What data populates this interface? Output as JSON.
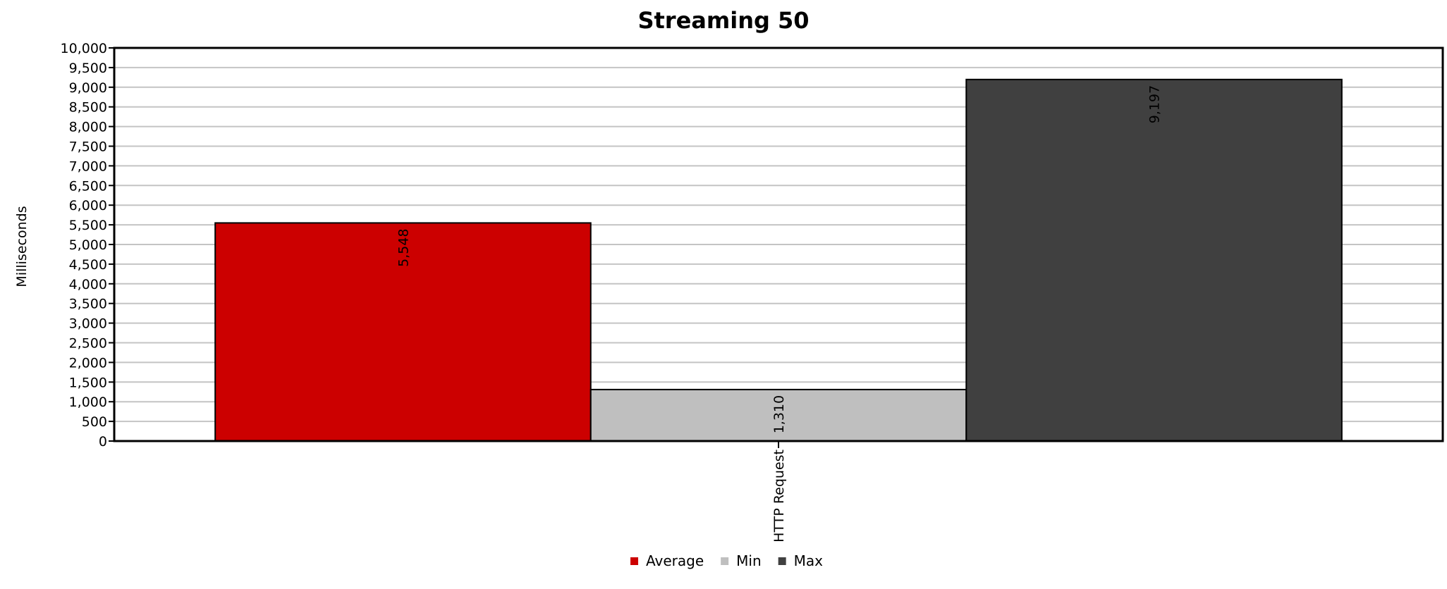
{
  "chart_data": {
    "type": "bar",
    "title": "Streaming 50",
    "xlabel": "",
    "ylabel": "Milliseconds",
    "categories": [
      "HTTP Request"
    ],
    "series": [
      {
        "name": "Average",
        "values": [
          5548
        ],
        "labels": [
          "5,548"
        ],
        "color": "#cc0000"
      },
      {
        "name": "Min",
        "values": [
          1310
        ],
        "labels": [
          "1,310"
        ],
        "color": "#bfbfbf"
      },
      {
        "name": "Max",
        "values": [
          9197
        ],
        "labels": [
          "9,197"
        ],
        "color": "#404040"
      }
    ],
    "ylim": [
      0,
      10000
    ],
    "ytick_step": 500,
    "yticks": [
      "0",
      "500",
      "1,000",
      "1,500",
      "2,000",
      "2,500",
      "3,000",
      "3,500",
      "4,000",
      "4,500",
      "5,000",
      "5,500",
      "6,000",
      "6,500",
      "7,000",
      "7,500",
      "8,000",
      "8,500",
      "9,000",
      "9,500",
      "10,000"
    ],
    "grid": true,
    "legend": "bottom-center"
  }
}
